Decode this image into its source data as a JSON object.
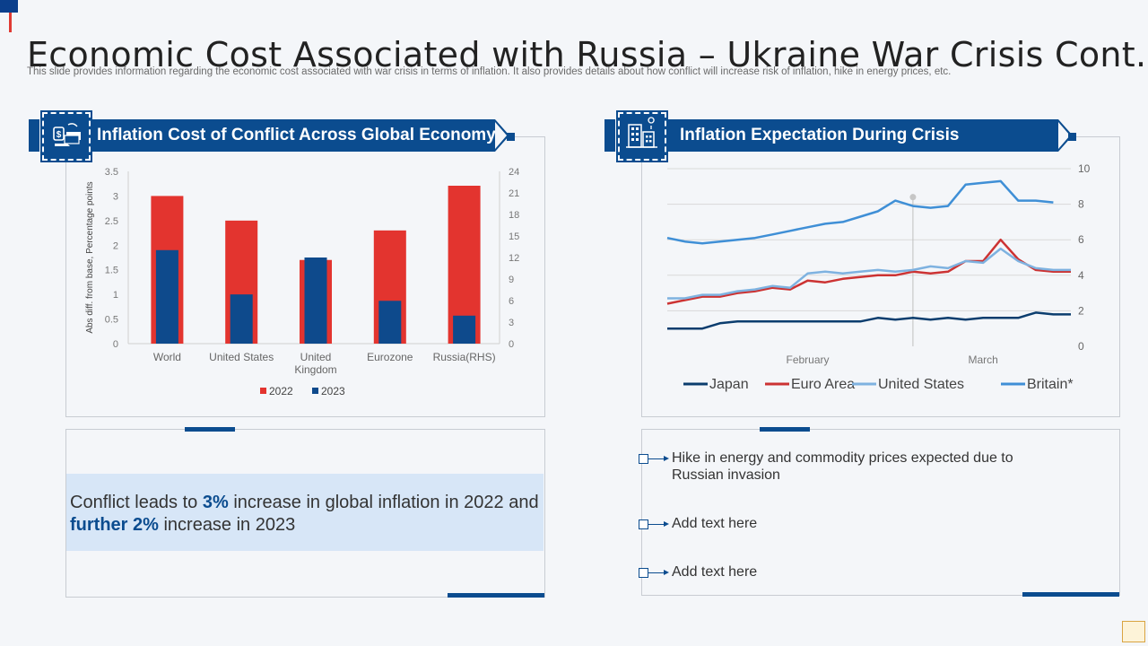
{
  "header": {
    "title": "Economic Cost Associated with Russia – Ukraine War Crisis Cont.",
    "subtitle": "This slide provides information regarding the economic cost associated with war crisis in terms of inflation. It also provides details about how conflict will increase risk of inflation, hike in energy prices, etc."
  },
  "left_panel": {
    "banner": "Inflation Cost of Conflict Across Global Economy",
    "icon": "money-exchange-icon",
    "callout": {
      "part1": "Conflict leads to ",
      "hl1": "3%",
      "part2": " increase in global inflation in 2022 and ",
      "hl2": "further 2%",
      "part3": " increase in 2023"
    }
  },
  "right_panel": {
    "banner": "Inflation Expectation During Crisis",
    "icon": "buildings-icon",
    "bullets": [
      "Hike in energy and commodity prices expected due to Russian invasion",
      "Add text here",
      "Add text here"
    ]
  },
  "colors": {
    "brand_blue": "#0b4c8f",
    "red_2022": "#e3342f",
    "blue_2023": "#0e4a8c",
    "japan": "#0b3d6e",
    "euro_area": "#cc3333",
    "united_states": "#7eb2e0",
    "britain": "#3f8fd6"
  },
  "chart_data": [
    {
      "type": "bar",
      "title": "",
      "categories": [
        "World",
        "United States",
        "United Kingdom",
        "Eurozone",
        "Russia(RHS)"
      ],
      "category_lines": [
        [
          "World"
        ],
        [
          "United States"
        ],
        [
          "United",
          "Kingdom"
        ],
        [
          "Eurozone"
        ],
        [
          "Russia(RHS)"
        ]
      ],
      "series": [
        {
          "name": "2022",
          "values": [
            3.0,
            2.5,
            1.7,
            2.3,
            22.0
          ],
          "axis": [
            "left",
            "left",
            "left",
            "left",
            "right"
          ]
        },
        {
          "name": "2023",
          "values": [
            1.9,
            1.0,
            1.75,
            0.87,
            3.9
          ],
          "axis": [
            "left",
            "left",
            "left",
            "left",
            "right"
          ]
        }
      ],
      "ylabel": "Abs diff. from base, Percentage points",
      "ylim": [
        0,
        3.5
      ],
      "yticks": [
        "0",
        "0.5",
        "1",
        "1.5",
        "2",
        "2.5",
        "3",
        "3.5"
      ],
      "y2lim": [
        0,
        24
      ],
      "y2ticks": [
        "0",
        "3",
        "6",
        "9",
        "12",
        "15",
        "18",
        "21",
        "24"
      ],
      "legend": [
        "2022",
        "2023"
      ],
      "legend_position": "bottom",
      "grid": false
    },
    {
      "type": "line",
      "title": "",
      "x_range": [
        0,
        23
      ],
      "xtick_labels": [
        {
          "x": 8,
          "label": "February"
        },
        {
          "x": 18,
          "label": "March"
        }
      ],
      "marker_x": 14,
      "ylim": [
        0,
        10
      ],
      "yticks": [
        "0",
        "2",
        "4",
        "6",
        "8",
        "10"
      ],
      "grid": true,
      "legend_position": "bottom",
      "series": [
        {
          "name": "Japan",
          "values": [
            1.0,
            1.0,
            1.0,
            1.3,
            1.4,
            1.4,
            1.4,
            1.4,
            1.4,
            1.4,
            1.4,
            1.4,
            1.6,
            1.5,
            1.6,
            1.5,
            1.6,
            1.5,
            1.6,
            1.6,
            1.6,
            1.9,
            1.8,
            1.8,
            1.8,
            1.8
          ]
        },
        {
          "name": "Euro Area",
          "values": [
            2.4,
            2.6,
            2.8,
            2.8,
            3.0,
            3.1,
            3.3,
            3.2,
            3.7,
            3.6,
            3.8,
            3.9,
            4.0,
            4.0,
            4.2,
            4.1,
            4.2,
            4.8,
            4.8,
            6.0,
            4.9,
            4.3,
            4.2,
            4.2
          ]
        },
        {
          "name": "United States",
          "values": [
            2.7,
            2.7,
            2.9,
            2.9,
            3.1,
            3.2,
            3.4,
            3.3,
            4.1,
            4.2,
            4.1,
            4.2,
            4.3,
            4.2,
            4.3,
            4.5,
            4.4,
            4.8,
            4.7,
            5.5,
            4.8,
            4.4,
            4.3,
            4.3
          ]
        },
        {
          "name": "Britain*",
          "values": [
            6.1,
            5.9,
            5.8,
            5.9,
            6.0,
            6.1,
            6.3,
            6.5,
            6.7,
            6.9,
            7.0,
            7.3,
            7.6,
            8.2,
            7.9,
            7.8,
            7.9,
            9.1,
            9.2,
            9.3,
            8.2,
            8.2,
            8.1
          ]
        }
      ]
    }
  ]
}
